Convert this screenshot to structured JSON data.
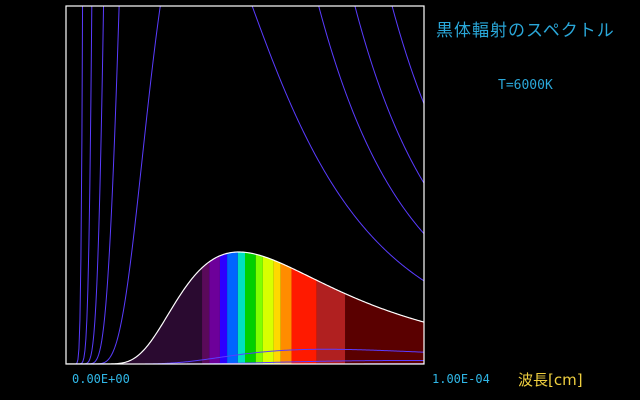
{
  "title": "黒体輻射のスペクトル",
  "temperature_label": "T=6000K",
  "x_axis": {
    "min_label": "0.00E+00",
    "max_label": "1.00E-04",
    "unit_label": "波長[cm]"
  },
  "colors": {
    "background": "#000000",
    "frame": "#ffffff",
    "curves": "#5a3cff",
    "title": "#2aa7d8",
    "axis_ticks": "#30b8e8",
    "unit_label": "#f0d040"
  },
  "chart_data": {
    "type": "line",
    "x_range_cm": [
      0,
      0.0001
    ],
    "temperature_K": 6000,
    "series": [
      {
        "T": 2000,
        "highlighted": false
      },
      {
        "T": 3000,
        "highlighted": false
      },
      {
        "T": 4000,
        "highlighted": false
      },
      {
        "T": 6000,
        "highlighted": true
      },
      {
        "T": 8000,
        "highlighted": false
      },
      {
        "T": 10000,
        "highlighted": false
      },
      {
        "T": 12000,
        "highlighted": false
      },
      {
        "T": 15000,
        "highlighted": false
      },
      {
        "T": 20000,
        "highlighted": false
      }
    ],
    "visible_spectrum_bands": [
      {
        "from_cm": 3.8e-05,
        "to_cm": 4e-05,
        "color": "#5a0a5a"
      },
      {
        "from_cm": 4e-05,
        "to_cm": 4.3e-05,
        "color": "#6d009a"
      },
      {
        "from_cm": 4.3e-05,
        "to_cm": 4.5e-05,
        "color": "#2d00ff"
      },
      {
        "from_cm": 4.5e-05,
        "to_cm": 4.8e-05,
        "color": "#0066ff"
      },
      {
        "from_cm": 4.8e-05,
        "to_cm": 5e-05,
        "color": "#00e0c0"
      },
      {
        "from_cm": 5e-05,
        "to_cm": 5.3e-05,
        "color": "#00d000"
      },
      {
        "from_cm": 5.3e-05,
        "to_cm": 5.5e-05,
        "color": "#80ff00"
      },
      {
        "from_cm": 5.5e-05,
        "to_cm": 5.8e-05,
        "color": "#d8ff00"
      },
      {
        "from_cm": 5.8e-05,
        "to_cm": 6e-05,
        "color": "#ffd800"
      },
      {
        "from_cm": 6e-05,
        "to_cm": 6.3e-05,
        "color": "#ff8c00"
      },
      {
        "from_cm": 6.3e-05,
        "to_cm": 7e-05,
        "color": "#ff1a00"
      },
      {
        "from_cm": 7e-05,
        "to_cm": 7.8e-05,
        "color": "#b02020"
      }
    ],
    "infrared_fill_color": "#5a0000",
    "ultraviolet_fill_color": "#2a0a30"
  }
}
